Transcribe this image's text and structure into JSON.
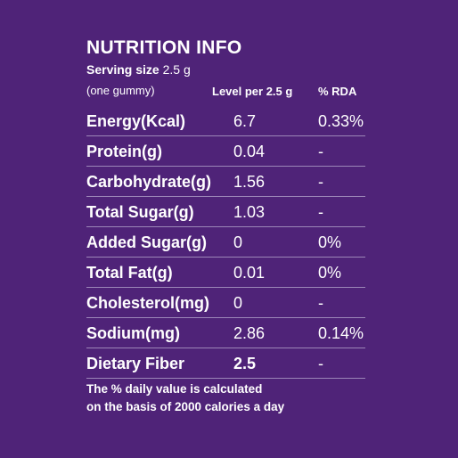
{
  "title": "NUTRITION INFO",
  "serving": {
    "label": "Serving size",
    "value": "2.5 g",
    "note": "(one gummy)"
  },
  "columns": {
    "level": "Level per 2.5 g",
    "rda": "%  RDA"
  },
  "rows": [
    {
      "nutrient": "Energy(Kcal)",
      "level": "6.7",
      "rda": "0.33%"
    },
    {
      "nutrient": "Protein(g)",
      "level": "0.04",
      "rda": "-"
    },
    {
      "nutrient": "Carbohydrate(g)",
      "level": "1.56",
      "rda": "-"
    },
    {
      "nutrient": "Total Sugar(g)",
      "level": "1.03",
      "rda": "-"
    },
    {
      "nutrient": "Added Sugar(g)",
      "level": "0",
      "rda": "0%"
    },
    {
      "nutrient": "Total Fat(g)",
      "level": "0.01",
      "rda": "0%"
    },
    {
      "nutrient": "Cholesterol(mg)",
      "level": "0",
      "rda": "-"
    },
    {
      "nutrient": "Sodium(mg)",
      "level": "2.86",
      "rda": "0.14%"
    },
    {
      "nutrient": "Dietary Fiber",
      "level": "2.5",
      "rda": "-"
    }
  ],
  "footer": {
    "line1": "The % daily value is calculated",
    "line2": "on the basis of 2000 calories a day"
  },
  "colors": {
    "background": "#4f2378",
    "text": "#ffffff",
    "divider": "#9c86b8"
  }
}
